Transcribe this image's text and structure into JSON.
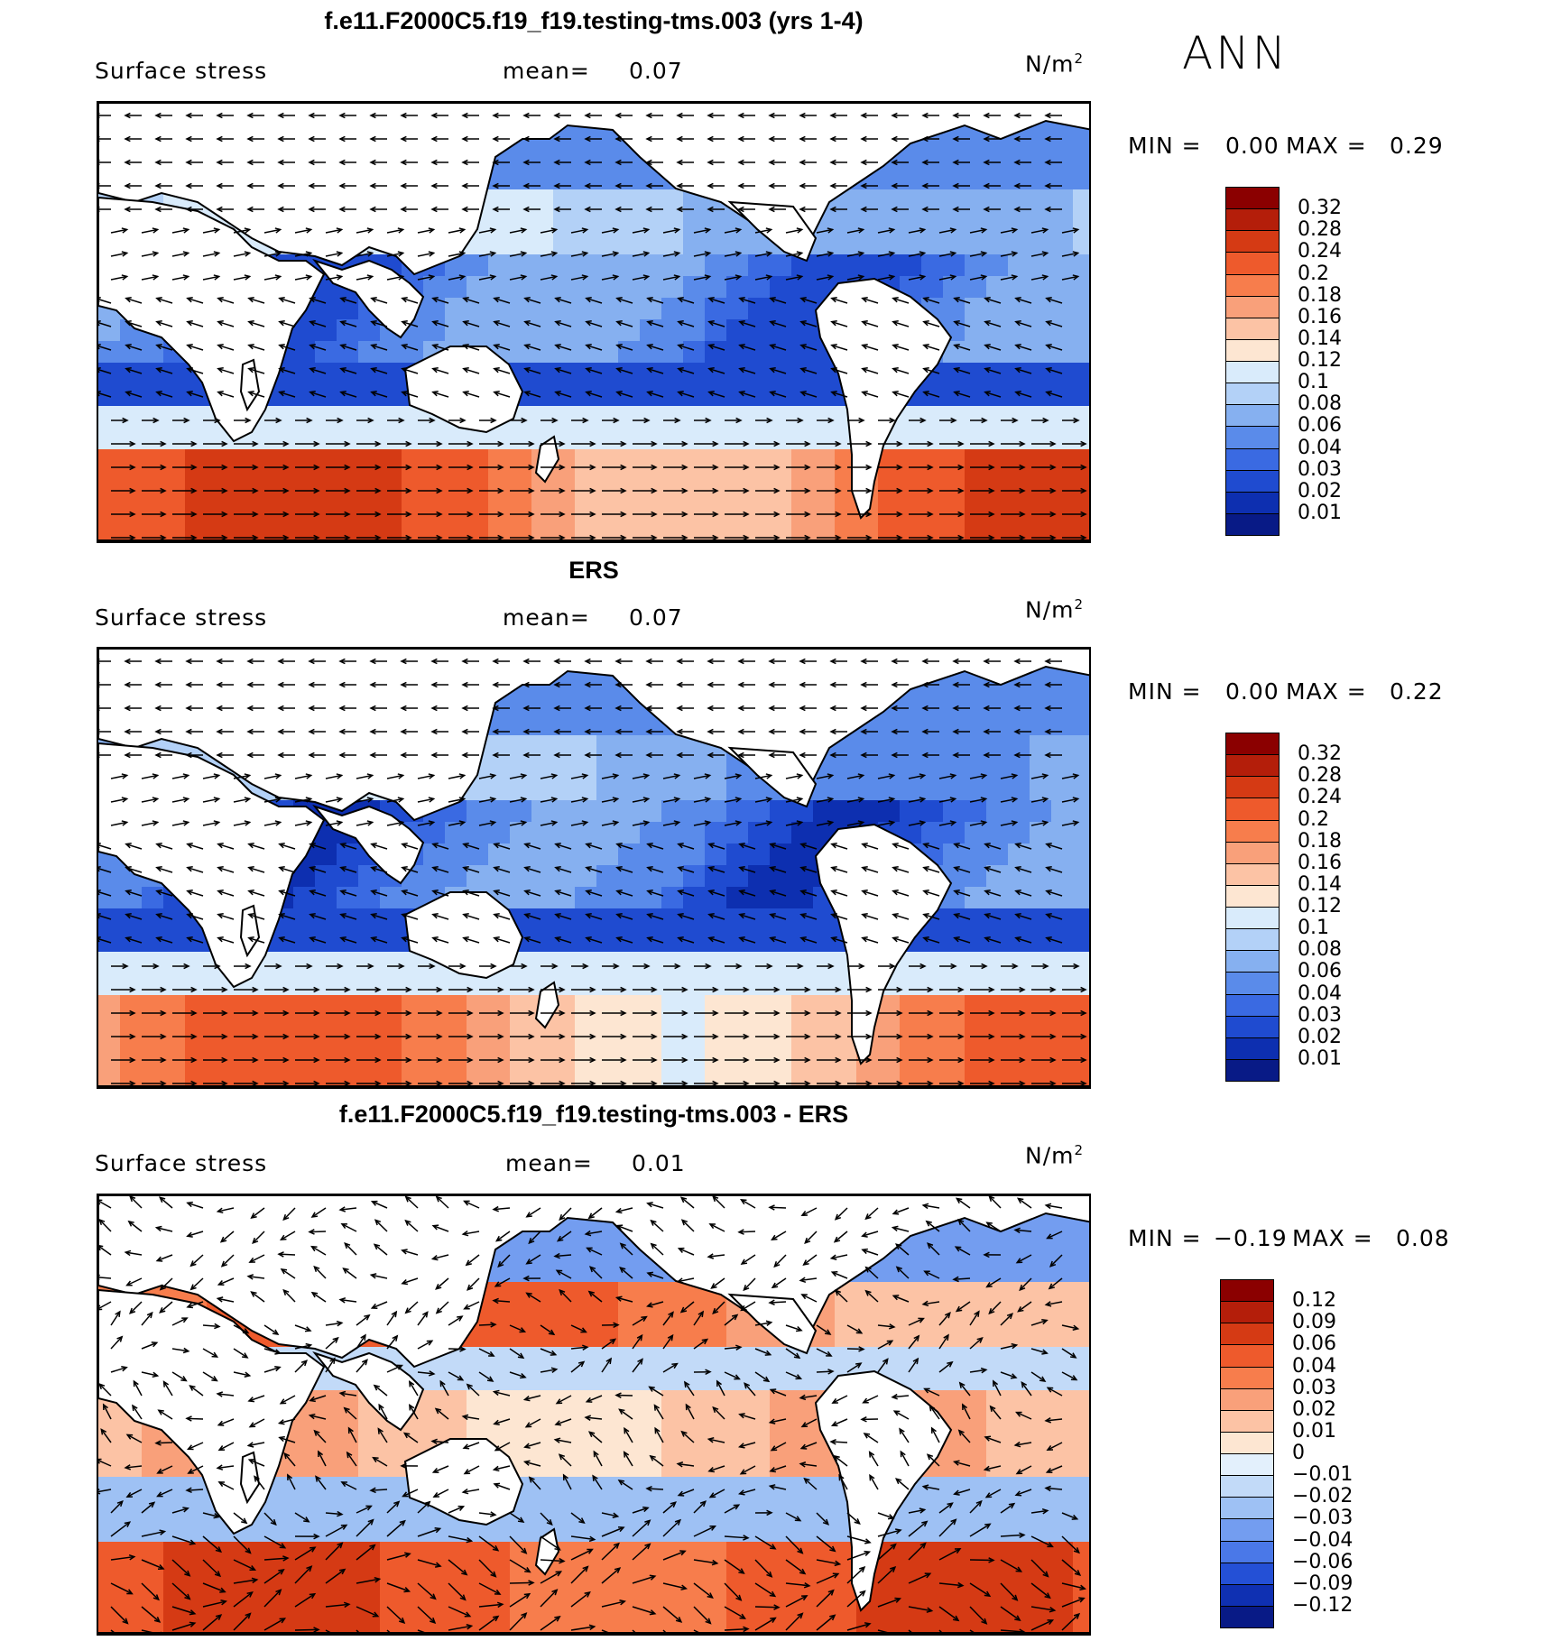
{
  "season": "ANN",
  "panels": [
    {
      "id": "model",
      "title": "f.e11.F2000C5.f19_f19.testing-tms.003 (yrs 1-4)",
      "variable": "Surface stress",
      "mean_label": "mean=",
      "mean_value": "0.07",
      "units_base": "N/m",
      "units_exp": "2",
      "min_label": "MIN =",
      "min_value": "0.00",
      "max_label": "MAX =",
      "max_value": "0.29",
      "colorbar": {
        "labels": [
          "0.32",
          "0.28",
          "0.24",
          "0.2",
          "0.18",
          "0.16",
          "0.14",
          "0.12",
          "0.1",
          "0.08",
          "0.06",
          "0.04",
          "0.03",
          "0.02",
          "0.01"
        ],
        "colors": [
          "#8b0000",
          "#b41e0a",
          "#d53a14",
          "#ee5a2c",
          "#f77d4c",
          "#f9a07a",
          "#fcc3a5",
          "#fde6d2",
          "#d9ebfb",
          "#b3d1f7",
          "#86b0f0",
          "#5a8bea",
          "#3a6ae2",
          "#1f4bd0",
          "#0d2fb0",
          "#081a86"
        ]
      }
    },
    {
      "id": "obs",
      "title": "ERS",
      "variable": "Surface stress",
      "mean_label": "mean=",
      "mean_value": "0.07",
      "units_base": "N/m",
      "units_exp": "2",
      "min_label": "MIN =",
      "min_value": "0.00",
      "max_label": "MAX =",
      "max_value": "0.22",
      "colorbar": {
        "labels": [
          "0.32",
          "0.28",
          "0.24",
          "0.2",
          "0.18",
          "0.16",
          "0.14",
          "0.12",
          "0.1",
          "0.08",
          "0.06",
          "0.04",
          "0.03",
          "0.02",
          "0.01"
        ],
        "colors": [
          "#8b0000",
          "#b41e0a",
          "#d53a14",
          "#ee5a2c",
          "#f77d4c",
          "#f9a07a",
          "#fcc3a5",
          "#fde6d2",
          "#d9ebfb",
          "#b3d1f7",
          "#86b0f0",
          "#5a8bea",
          "#3a6ae2",
          "#1f4bd0",
          "#0d2fb0",
          "#081a86"
        ]
      }
    },
    {
      "id": "diff",
      "title": "f.e11.F2000C5.f19_f19.testing-tms.003 - ERS",
      "variable": "Surface stress",
      "mean_label": "mean=",
      "mean_value": "0.01",
      "units_base": "N/m",
      "units_exp": "2",
      "min_label": "MIN =",
      "min_value": "−0.19",
      "max_label": "MAX =",
      "max_value": "0.08",
      "colorbar": {
        "labels": [
          "0.12",
          "0.09",
          "0.06",
          "0.04",
          "0.03",
          "0.02",
          "0.01",
          "0",
          "−0.01",
          "−0.02",
          "−0.03",
          "−0.04",
          "−0.06",
          "−0.09",
          "−0.12"
        ],
        "colors": [
          "#8b0000",
          "#b41e0a",
          "#d53a14",
          "#ee5a2c",
          "#f77d4c",
          "#f9a07a",
          "#fcc3a5",
          "#fde6d2",
          "#e3f0fc",
          "#c2daf8",
          "#9ec1f4",
          "#739df0",
          "#4a78e8",
          "#2450d6",
          "#0f30b2",
          "#081a86"
        ]
      }
    }
  ]
}
